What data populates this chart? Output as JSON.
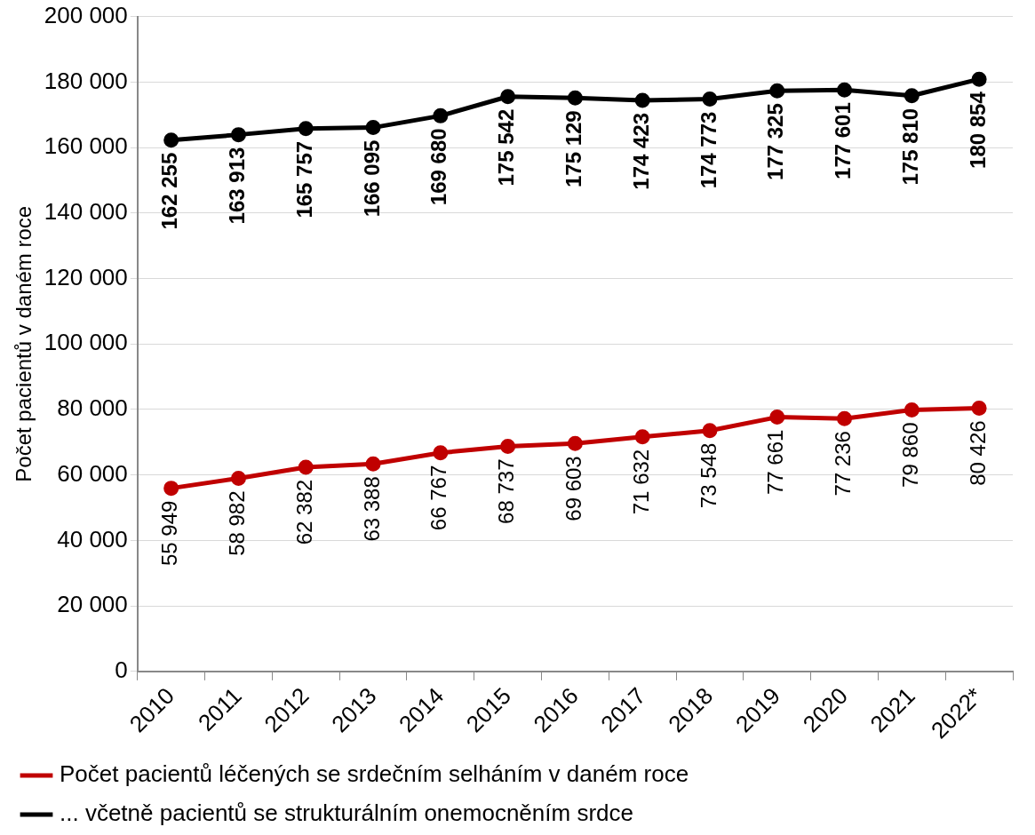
{
  "chart_data": {
    "type": "line",
    "ylabel": "Počet pacientů v daném roce",
    "categories": [
      "2010",
      "2011",
      "2012",
      "2013",
      "2014",
      "2015",
      "2016",
      "2017",
      "2018",
      "2019",
      "2020",
      "2021",
      "2022*"
    ],
    "ylim": [
      0,
      200000
    ],
    "yticks": [
      {
        "value": 0,
        "label": "0"
      },
      {
        "value": 20000,
        "label": "20 000"
      },
      {
        "value": 40000,
        "label": "40 000"
      },
      {
        "value": 60000,
        "label": "60 000"
      },
      {
        "value": 80000,
        "label": "80 000"
      },
      {
        "value": 100000,
        "label": "100 000"
      },
      {
        "value": 120000,
        "label": "120 000"
      },
      {
        "value": 140000,
        "label": "140 000"
      },
      {
        "value": 160000,
        "label": "160 000"
      },
      {
        "value": 180000,
        "label": "180 000"
      },
      {
        "value": 200000,
        "label": "200 000"
      }
    ],
    "grid": "y",
    "legend": "bottom",
    "marker": "circle",
    "line_style": "solid",
    "series": [
      {
        "name": "Počet pacientů léčených se srdečním selháním v daném roce",
        "color": "#c00000",
        "values": [
          55949,
          58982,
          62382,
          63388,
          66767,
          68737,
          69603,
          71632,
          73548,
          77661,
          77236,
          79860,
          80426
        ],
        "value_labels": [
          "55 949",
          "58 982",
          "62 382",
          "63 388",
          "66 767",
          "68 737",
          "69 603",
          "71 632",
          "73 548",
          "77 661",
          "77 236",
          "79 860",
          "80 426"
        ]
      },
      {
        "name": "... včetně pacientů se strukturálním onemocněním srdce",
        "color": "#000000",
        "values": [
          162255,
          163913,
          165757,
          166095,
          169680,
          175542,
          175129,
          174423,
          174773,
          177325,
          177601,
          175810,
          180854
        ],
        "value_labels": [
          "162 255",
          "163 913",
          "165 757",
          "166 095",
          "169 680",
          "175 542",
          "175 129",
          "174 423",
          "174 773",
          "177 325",
          "177 601",
          "175 810",
          "180 854"
        ]
      }
    ]
  }
}
